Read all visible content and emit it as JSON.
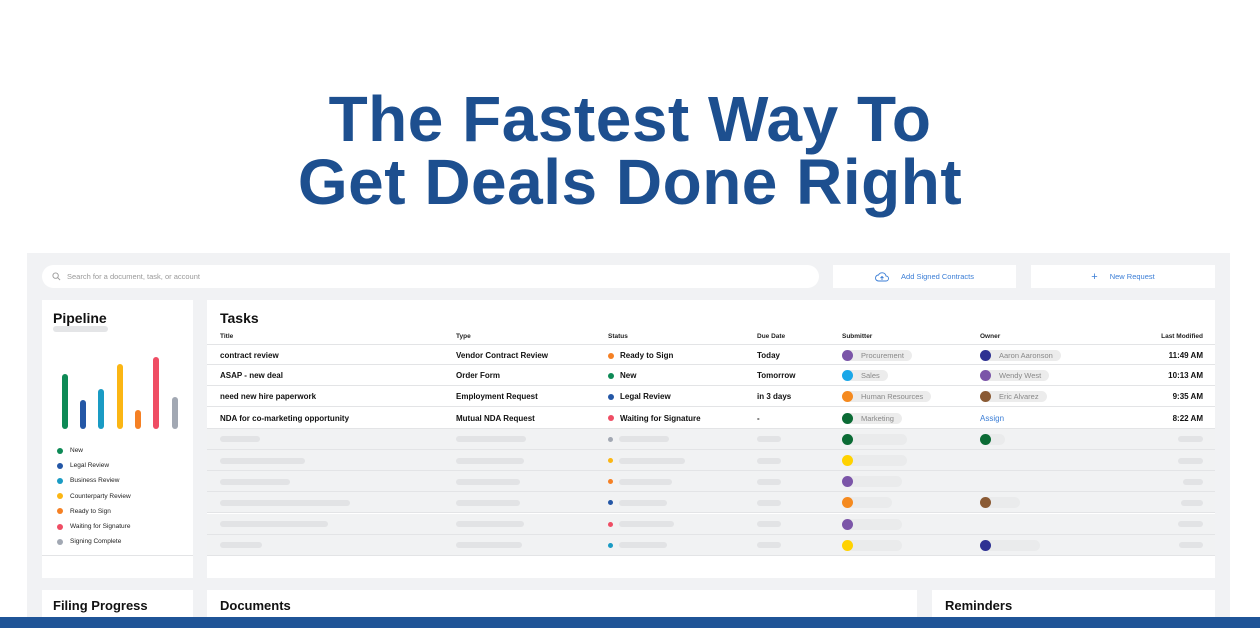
{
  "headline": {
    "line1": "The Fastest Way To",
    "line2": "Get Deals Done Right"
  },
  "search": {
    "placeholder": "Search for a document, task, or account",
    "icon": "search-icon"
  },
  "buttons": {
    "add_signed": "Add Signed Contracts",
    "new_request": "New Request"
  },
  "pipeline": {
    "title": "Pipeline",
    "bars": [
      {
        "stage": "New",
        "level": 0.76,
        "color": "#0e8a56"
      },
      {
        "stage": "Legal Review",
        "level": 0.4,
        "color": "#2457a6"
      },
      {
        "stage": "Business Review",
        "level": 0.55,
        "color": "#1a9bc4"
      },
      {
        "stage": "Counterparty Review",
        "level": 0.9,
        "color": "#fbb614"
      },
      {
        "stage": "Ready to Sign",
        "level": 0.26,
        "color": "#f58024"
      },
      {
        "stage": "Waiting for Signature",
        "level": 1.0,
        "color": "#ef4d64"
      },
      {
        "stage": "Signing Complete",
        "level": 0.45,
        "color": "#a2a8b3"
      }
    ],
    "legend": [
      {
        "label": "New",
        "color": "#0e8a56"
      },
      {
        "label": "Legal Review",
        "color": "#2457a6"
      },
      {
        "label": "Business Review",
        "color": "#1a9bc4"
      },
      {
        "label": "Counterparty Review",
        "color": "#fbb614"
      },
      {
        "label": "Ready to Sign",
        "color": "#f58024"
      },
      {
        "label": "Waiting for Signature",
        "color": "#ef4d64"
      },
      {
        "label": "Signing Complete",
        "color": "#a2a8b3"
      }
    ]
  },
  "tasks": {
    "title": "Tasks",
    "columns": [
      "Title",
      "Type",
      "Status",
      "Due Date",
      "Submitter",
      "Owner",
      "Last Modified"
    ],
    "rows": [
      {
        "title": "contract review",
        "type": "Vendor Contract Review",
        "status": "Ready to Sign",
        "status_color": "#f58024",
        "due": "Today",
        "submitter": "Procurement",
        "submitter_color": "#7b55a8",
        "owner": "Aaron Aaronson",
        "owner_color": "#2e3192",
        "modified": "11:49 AM"
      },
      {
        "title": "ASAP - new deal",
        "type": "Order Form",
        "status": "New",
        "status_color": "#0e8a56",
        "due": "Tomorrow",
        "submitter": "Sales",
        "submitter_color": "#1aa7e8",
        "owner": "Wendy West",
        "owner_color": "#7b55a8",
        "modified": "10:13 AM"
      },
      {
        "title": "need new hire paperwork",
        "type": "Employment Request",
        "status": "Legal Review",
        "status_color": "#2457a6",
        "due": "in 3 days",
        "submitter": "Human Resources",
        "submitter_color": "#f58a1f",
        "owner": "Eric Alvarez",
        "owner_color": "#8a5a34",
        "modified": "9:35 AM"
      },
      {
        "title": "NDA for co-marketing opportunity",
        "type": "Mutual NDA Request",
        "status": "Waiting for Signature",
        "status_color": "#ef4d64",
        "due": "-",
        "submitter": "Marketing",
        "submitter_color": "#0b6b35",
        "owner": "Assign",
        "owner_color": "",
        "modified": "8:22 AM"
      }
    ],
    "placeholder_rows": [
      {
        "status_color": "#a2a8b3",
        "submitter_color": "#0b6b35",
        "owner_color": "#0b6b35"
      },
      {
        "status_color": "#fbb614",
        "submitter_color": "#ffd200",
        "owner_color": ""
      },
      {
        "status_color": "#f58024",
        "submitter_color": "#7b55a8",
        "owner_color": ""
      },
      {
        "status_color": "#2457a6",
        "submitter_color": "#f58a1f",
        "owner_color": "#8a5a34"
      },
      {
        "status_color": "#ef4d64",
        "submitter_color": "#7b55a8",
        "owner_color": ""
      },
      {
        "status_color": "#1a9bc4",
        "submitter_color": "#ffd200",
        "owner_color": "#2e3192"
      }
    ]
  },
  "bottom_cards": {
    "filing": "Filing Progress",
    "documents": "Documents",
    "reminders": "Reminders"
  },
  "colors": {
    "headline": "#1d4f8f",
    "accent": "#3b7ed6",
    "footer_bar": "#1f5497"
  }
}
